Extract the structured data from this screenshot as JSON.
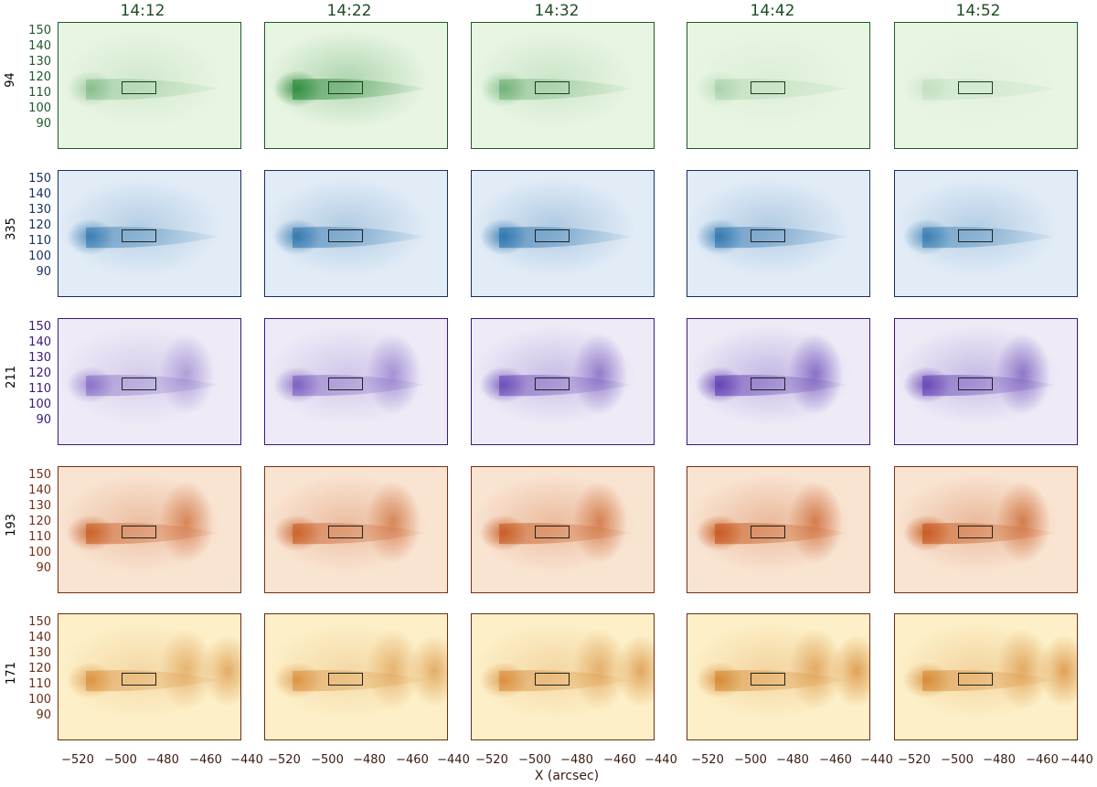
{
  "columns": [
    "14:12",
    "14:22",
    "14:32",
    "14:42",
    "14:52"
  ],
  "rows": [
    {
      "channel": "94",
      "color": "#1e5a28",
      "tint": "#e8f5e3",
      "feature": "#2b8a3a",
      "strength": [
        0.35,
        0.9,
        0.45,
        0.2,
        0.12
      ]
    },
    {
      "channel": "335",
      "color": "#15315e",
      "tint": "#e2ecf7",
      "feature": "#1d6aa6",
      "strength": [
        0.7,
        0.75,
        0.8,
        0.75,
        0.7
      ]
    },
    {
      "channel": "211",
      "color": "#3d1680",
      "tint": "#eeebf7",
      "feature": "#5b38b0",
      "strength": [
        0.5,
        0.6,
        0.75,
        0.85,
        0.8
      ]
    },
    {
      "channel": "193",
      "color": "#7a2e14",
      "tint": "#f9e4d2",
      "feature": "#c6551a",
      "strength": [
        0.8,
        0.8,
        0.85,
        0.9,
        0.9
      ]
    },
    {
      "channel": "171",
      "color": "#6b2e14",
      "tint": "#fdf0c8",
      "feature": "#d07a1e",
      "strength": [
        0.6,
        0.6,
        0.65,
        0.7,
        0.7
      ]
    }
  ],
  "y_ticks": [
    "150",
    "140",
    "130",
    "120",
    "110",
    "100",
    "90"
  ],
  "x_ticks": [
    "−520",
    "−500",
    "−480",
    "−460",
    "−440"
  ],
  "x_axis_label": "X (arcsec)"
}
